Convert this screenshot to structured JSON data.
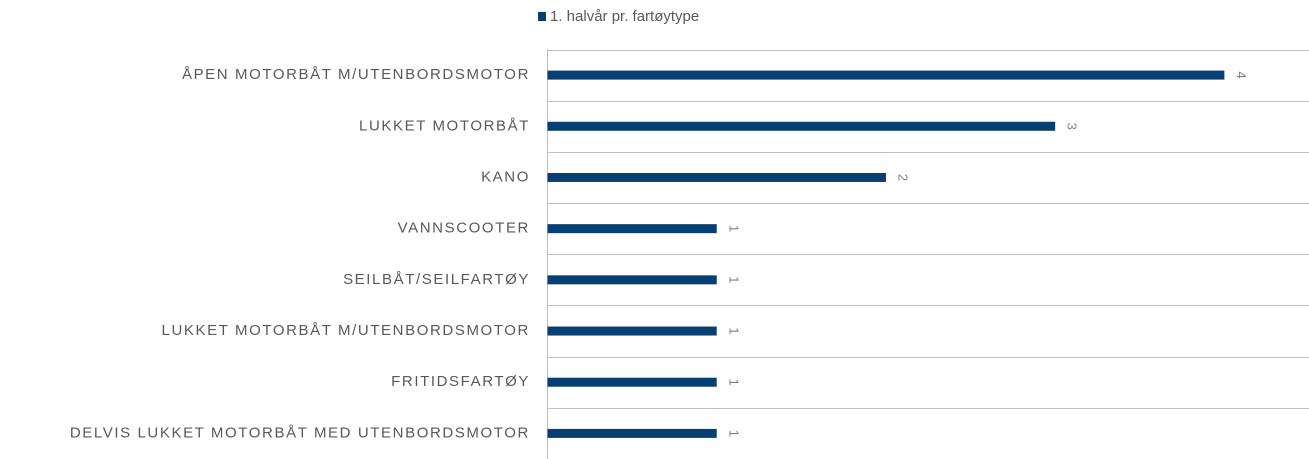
{
  "chart_data": {
    "type": "bar",
    "orientation": "horizontal",
    "series": [
      {
        "name": "1. halvår pr. fartøytype",
        "color": "#073f72",
        "values": [
          4,
          3,
          2,
          1,
          1,
          1,
          1,
          1
        ]
      }
    ],
    "categories": [
      "ÅPEN MOTORBÅT M/UTENBORDSMOTOR",
      "LUKKET MOTORBÅT",
      "KANO",
      "VANNSCOOTER",
      "SEILBÅT/SEILFARTØY",
      "LUKKET MOTORBÅT M/UTENBORDSMOTOR",
      "FRITIDSFARTØY",
      "DELVIS LUKKET MOTORBÅT MED UTENBORDSMOTOR"
    ],
    "xlim": [
      0,
      4.5
    ],
    "legend": "top",
    "data_labels": true
  }
}
